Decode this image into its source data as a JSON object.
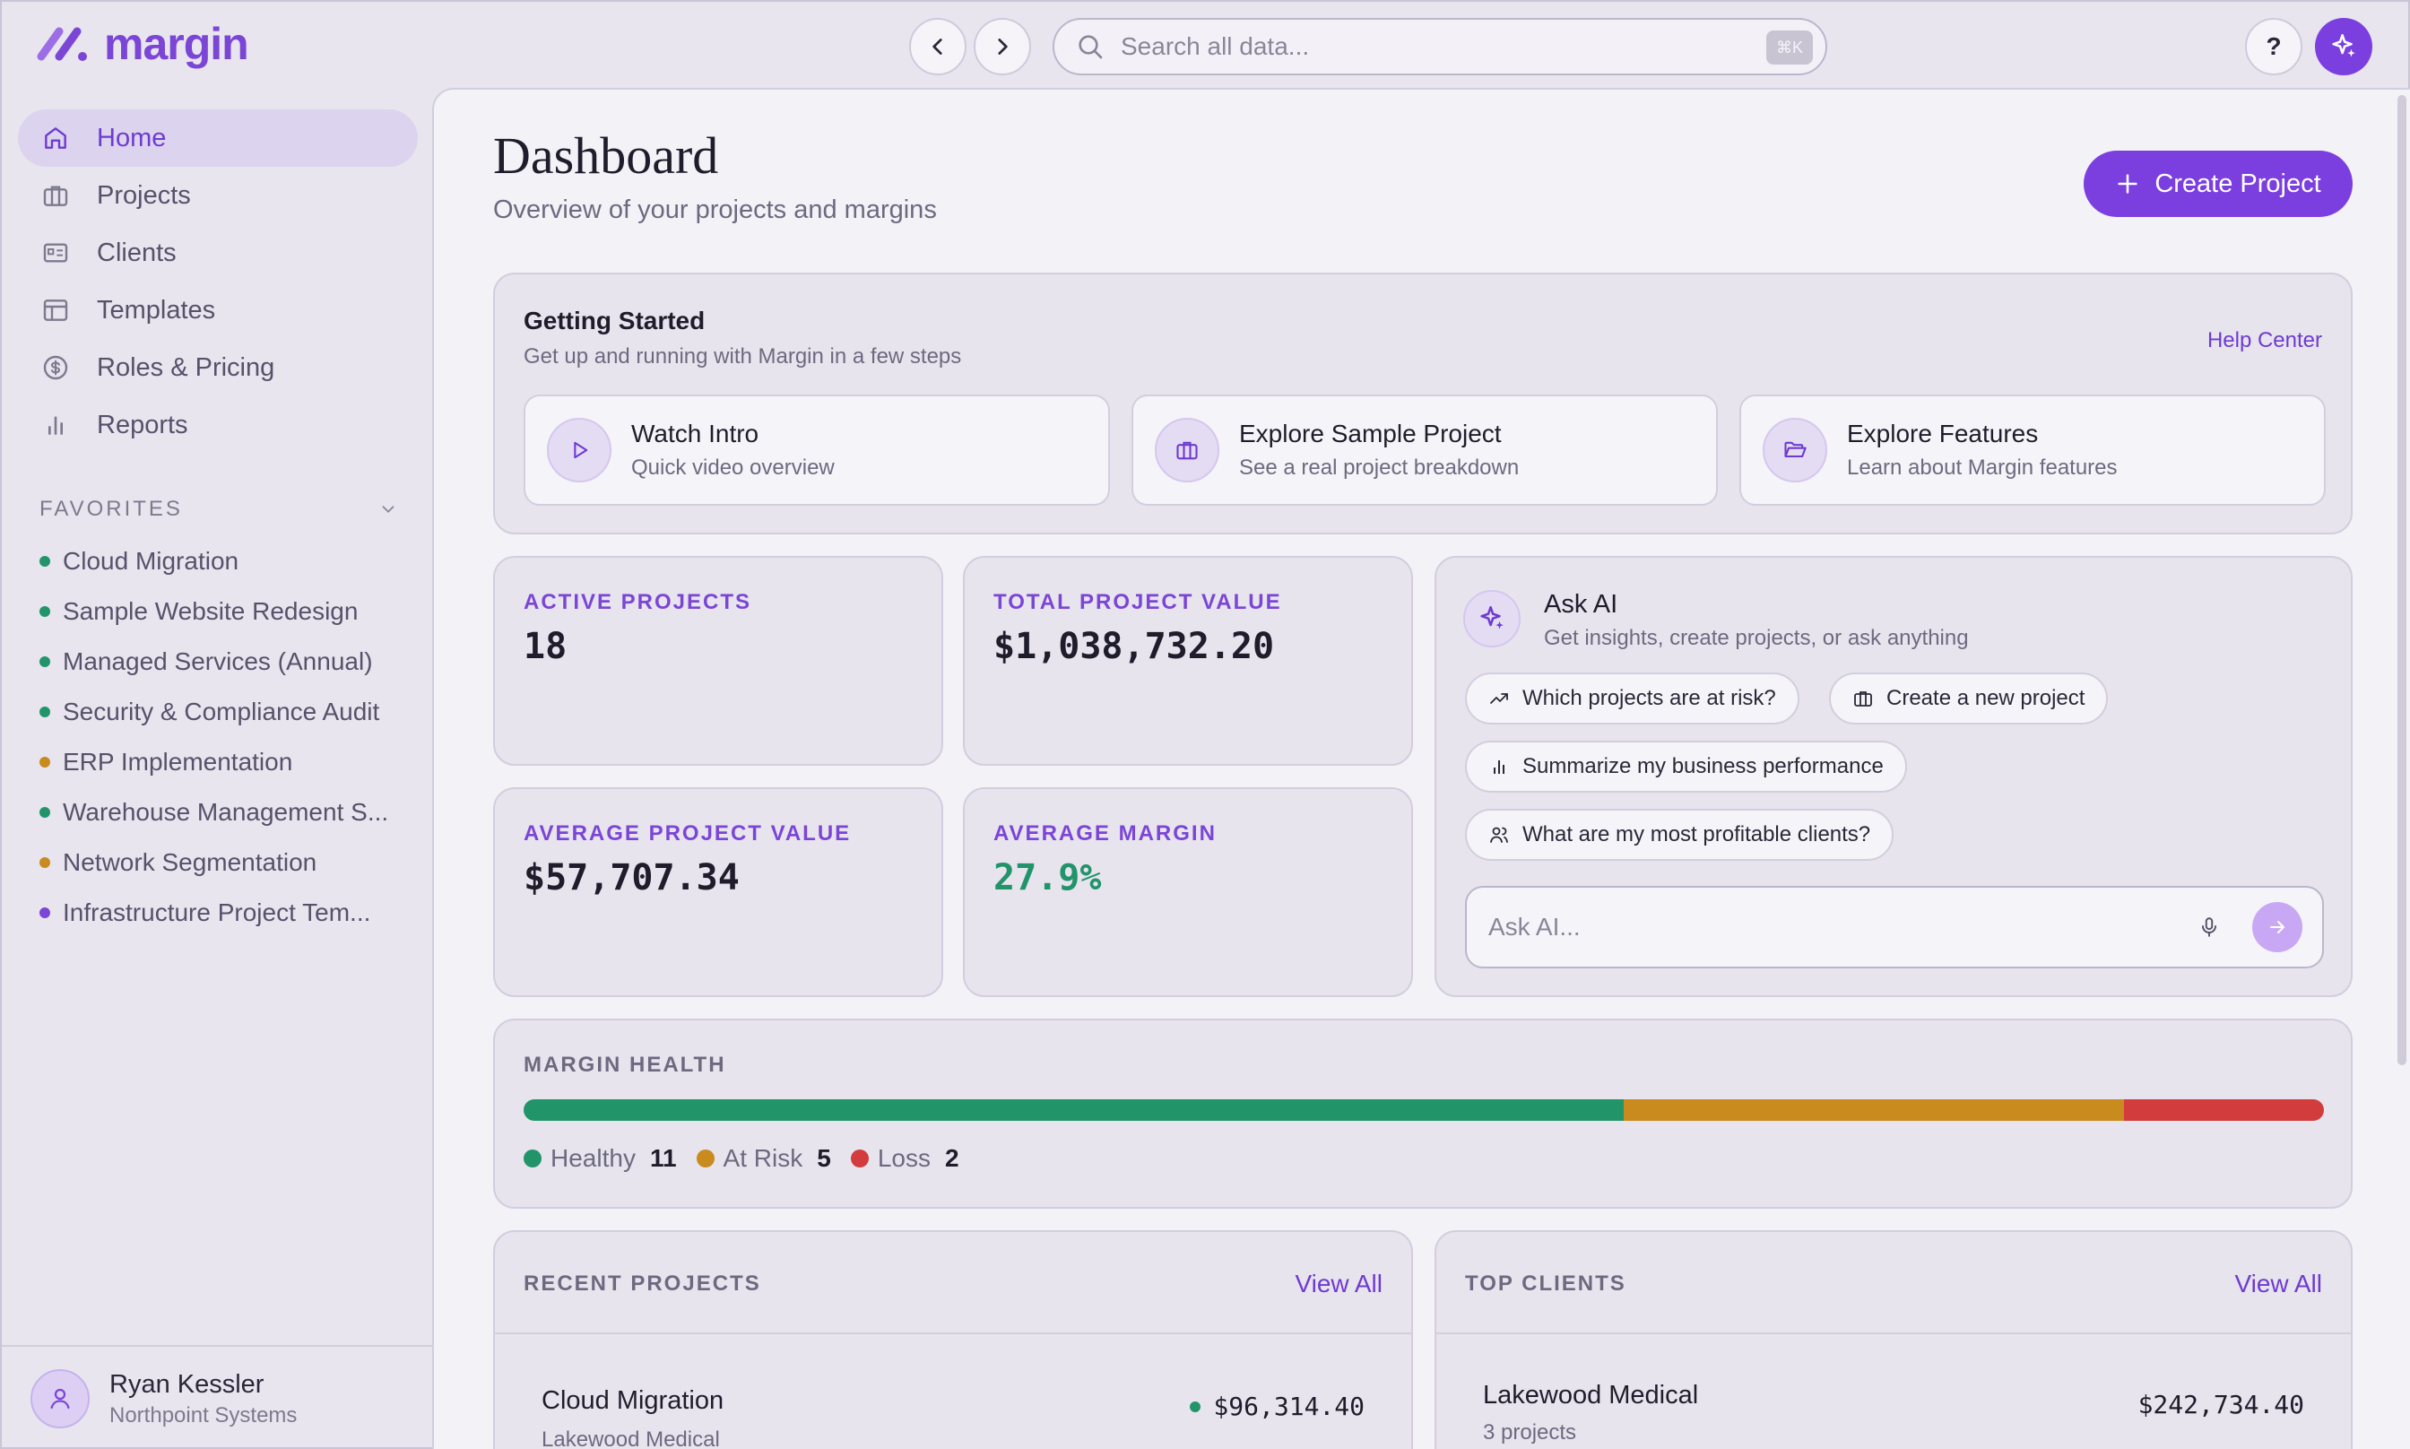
{
  "app": {
    "name": "margin",
    "search_placeholder": "Search all data...",
    "search_shortcut": "⌘K",
    "help_label": "?"
  },
  "sidebar": {
    "items": [
      {
        "label": "Home",
        "icon": "home-icon",
        "active": true
      },
      {
        "label": "Projects",
        "icon": "briefcase-icon"
      },
      {
        "label": "Clients",
        "icon": "contact-card-icon"
      },
      {
        "label": "Templates",
        "icon": "layout-icon"
      },
      {
        "label": "Roles & Pricing",
        "icon": "dollar-circle-icon"
      },
      {
        "label": "Reports",
        "icon": "bar-chart-icon"
      }
    ],
    "favorites_label": "FAVORITES",
    "favorites": [
      {
        "label": "Cloud Migration",
        "color": "#22946a"
      },
      {
        "label": "Sample Website Redesign",
        "color": "#22946a"
      },
      {
        "label": "Managed Services (Annual)",
        "color": "#22946a"
      },
      {
        "label": "Security & Compliance Audit",
        "color": "#22946a"
      },
      {
        "label": "ERP Implementation",
        "color": "#c98a1e"
      },
      {
        "label": "Warehouse Management S...",
        "color": "#22946a"
      },
      {
        "label": "Network Segmentation",
        "color": "#c98a1e"
      },
      {
        "label": "Infrastructure Project Tem...",
        "color": "#7b45d6"
      }
    ],
    "user": {
      "name": "Ryan Kessler",
      "org": "Northpoint Systems"
    }
  },
  "header": {
    "title": "Dashboard",
    "subtitle": "Overview of your projects and margins",
    "create_label": "Create Project"
  },
  "getting_started": {
    "title": "Getting Started",
    "subtitle": "Get up and running with Margin in a few steps",
    "help_link": "Help Center",
    "tiles": [
      {
        "title": "Watch Intro",
        "subtitle": "Quick video overview",
        "icon": "play-icon"
      },
      {
        "title": "Explore Sample Project",
        "subtitle": "See a real project breakdown",
        "icon": "briefcase-icon"
      },
      {
        "title": "Explore Features",
        "subtitle": "Learn about Margin features",
        "icon": "folder-open-icon"
      }
    ]
  },
  "stats": [
    {
      "label": "ACTIVE PROJECTS",
      "value": "18"
    },
    {
      "label": "TOTAL PROJECT VALUE",
      "value": "$1,038,732.20"
    },
    {
      "label": "AVERAGE PROJECT VALUE",
      "value": "$57,707.34"
    },
    {
      "label": "AVERAGE MARGIN",
      "value": "27.9%"
    }
  ],
  "ask_ai": {
    "title": "Ask AI",
    "subtitle": "Get insights, create projects, or ask anything",
    "suggestions": [
      {
        "label": "Which projects are at risk?",
        "icon": "trend-up-icon"
      },
      {
        "label": "Create a new project",
        "icon": "briefcase-icon"
      },
      {
        "label": "Summarize my business performance",
        "icon": "bar-chart-icon"
      },
      {
        "label": "What are my most profitable clients?",
        "icon": "users-icon"
      }
    ],
    "input_placeholder": "Ask AI..."
  },
  "margin_health": {
    "label": "MARGIN HEALTH",
    "segments": [
      {
        "name": "Healthy",
        "count": 11,
        "color": "#22946a"
      },
      {
        "name": "At Risk",
        "count": 5,
        "color": "#c98a1e"
      },
      {
        "name": "Loss",
        "count": 2,
        "color": "#d23c3c"
      }
    ]
  },
  "recent_projects": {
    "label": "RECENT PROJECTS",
    "view_all": "View All",
    "rows": [
      {
        "name": "Cloud Migration",
        "client": "Lakewood Medical",
        "value": "$96,314.40",
        "status_color": "#22946a"
      }
    ]
  },
  "top_clients": {
    "label": "TOP CLIENTS",
    "view_all": "View All",
    "rows": [
      {
        "name": "Lakewood Medical",
        "projects": "3 projects",
        "value": "$242,734.40"
      }
    ]
  }
}
